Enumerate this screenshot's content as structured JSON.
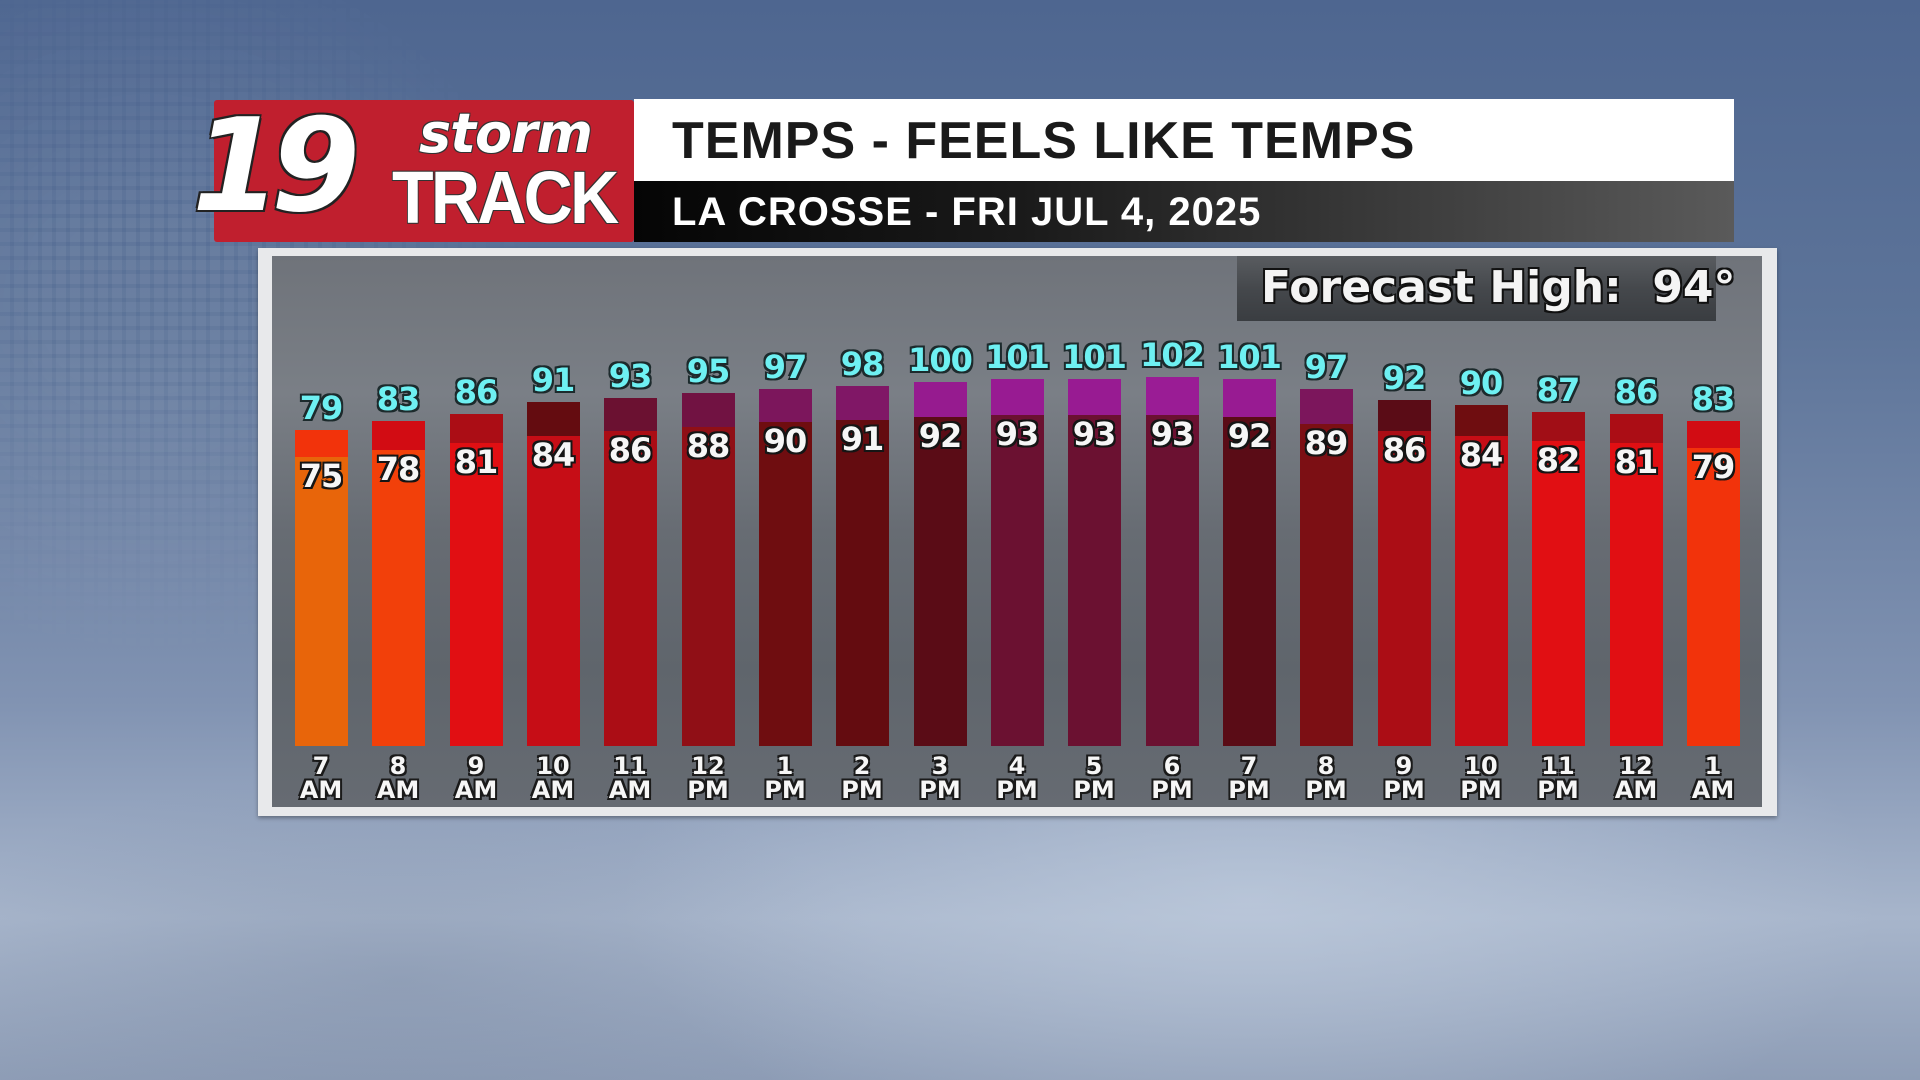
{
  "logo": {
    "number": "19",
    "word1": "storm",
    "word2": "TRACK",
    "bg_color": "#c01f2e"
  },
  "header": {
    "title": "TEMPS - FEELS LIKE TEMPS",
    "subtitle": "LA CROSSE - FRI JUL 4, 2025"
  },
  "forecast_high": {
    "label": "Forecast High:",
    "value": "94°",
    "text": "Forecast High:  94°"
  },
  "colors": {
    "feels_label": "#6ef0f2",
    "temp_label": "#f6f6f6"
  },
  "chart_data": {
    "type": "bar",
    "title": "TEMPS - FEELS LIKE TEMPS",
    "subtitle": "LA CROSSE - FRI JUL 4, 2025",
    "annotation": "Forecast High: 94°",
    "xlabel": "",
    "ylabel": "",
    "grid": false,
    "legend": "none",
    "categories": [
      "7 AM",
      "8 AM",
      "9 AM",
      "10 AM",
      "11 AM",
      "12 PM",
      "1 PM",
      "2 PM",
      "3 PM",
      "4 PM",
      "5 PM",
      "6 PM",
      "7 PM",
      "8 PM",
      "9 PM",
      "10 PM",
      "11 PM",
      "12 AM",
      "1 AM"
    ],
    "time_labels": [
      [
        "7",
        "AM"
      ],
      [
        "8",
        "AM"
      ],
      [
        "9",
        "AM"
      ],
      [
        "10",
        "AM"
      ],
      [
        "11",
        "AM"
      ],
      [
        "12",
        "PM"
      ],
      [
        "1",
        "PM"
      ],
      [
        "2",
        "PM"
      ],
      [
        "3",
        "PM"
      ],
      [
        "4",
        "PM"
      ],
      [
        "5",
        "PM"
      ],
      [
        "6",
        "PM"
      ],
      [
        "7",
        "PM"
      ],
      [
        "8",
        "PM"
      ],
      [
        "9",
        "PM"
      ],
      [
        "10",
        "PM"
      ],
      [
        "11",
        "PM"
      ],
      [
        "12",
        "AM"
      ],
      [
        "1",
        "AM"
      ]
    ],
    "series": [
      {
        "name": "Feels Like Temp",
        "label_color": "#6ef0f2",
        "values": [
          79,
          83,
          86,
          91,
          93,
          95,
          97,
          98,
          100,
          101,
          101,
          102,
          101,
          97,
          92,
          90,
          87,
          86,
          83
        ]
      },
      {
        "name": "Temp",
        "label_color": "#f6f6f6",
        "values": [
          75,
          78,
          81,
          84,
          86,
          88,
          90,
          91,
          92,
          93,
          93,
          93,
          92,
          89,
          86,
          84,
          82,
          81,
          79
        ]
      }
    ],
    "color_scale": {
      "75": "#e8650a",
      "78": "#f2400a",
      "79": "#f2330b",
      "81": "#e10f13",
      "82": "#e10f13",
      "83": "#d20c13",
      "84": "#c60d16",
      "86": "#ab0d15",
      "87": "#a10e16",
      "88": "#900f16",
      "89": "#7c0f14",
      "90": "#6f0d10",
      "91": "#640c10",
      "92": "#5a0c16",
      "93": "#6b1131",
      "95": "#711242",
      "97": "#7c165c",
      "98": "#801766",
      "100": "#961b8f",
      "101": "#981b92",
      "102": "#9a1c95"
    }
  }
}
